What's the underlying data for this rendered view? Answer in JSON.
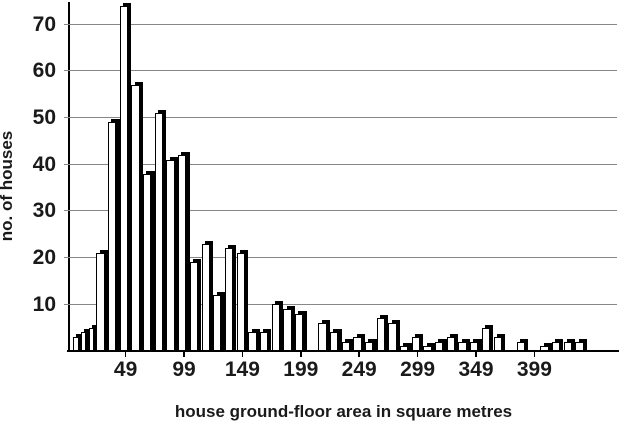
{
  "chart_data": {
    "type": "bar",
    "subtype": "histogram",
    "title": "",
    "xlabel": "house ground-floor area in square metres",
    "ylabel": "no. of houses",
    "x_tick_labels": [
      "49",
      "99",
      "149",
      "199",
      "249",
      "299",
      "349",
      "399"
    ],
    "y_tick_labels": [
      "10",
      "20",
      "30",
      "40",
      "50",
      "60",
      "70"
    ],
    "y_tick_values": [
      10,
      20,
      30,
      40,
      50,
      60,
      70
    ],
    "ylim": [
      0,
      75
    ],
    "bin_width_sq_m": 10,
    "values": [
      3,
      4,
      5,
      21,
      49,
      74,
      57,
      38,
      51,
      41,
      42,
      19,
      23,
      12,
      22,
      21,
      4,
      4,
      10,
      9,
      8,
      0,
      6,
      4,
      2,
      3,
      2,
      7,
      6,
      1,
      3,
      1,
      2,
      3,
      2,
      2,
      5,
      3,
      0,
      2,
      0,
      1,
      2,
      2,
      2
    ],
    "narrow_first_n": 3,
    "x_tick_every_n_bars": 5,
    "first_tick_bar_index": 5,
    "grid": "horizontal",
    "legend": "none",
    "bar_style": "white fill, black outline, black drop shadow offset up-right",
    "colors": {
      "bar_fill": "#ffffff",
      "bar_outline": "#000000",
      "bar_shadow": "#000000",
      "gridline": "#878787",
      "axis": "#000000",
      "text": "#1a1a1a",
      "background": "#ffffff"
    }
  }
}
